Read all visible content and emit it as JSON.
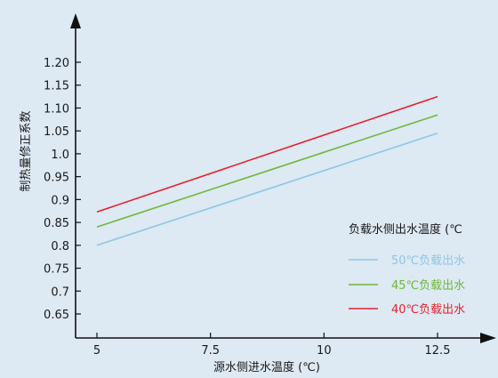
{
  "chart_data": {
    "type": "line",
    "title": "",
    "xlabel": "源水侧进水温度 (℃)",
    "ylabel": "制热量修正系数",
    "x_ticks": [
      "5",
      "7.5",
      "10",
      "12.5"
    ],
    "y_ticks": [
      "0.65",
      "0.7",
      "0.75",
      "0.8",
      "0.85",
      "0.9",
      "0.95",
      "1.0",
      "1.05",
      "1.10",
      "1.15",
      "1.20"
    ],
    "xlim": [
      5,
      12.5
    ],
    "ylim": [
      0.65,
      1.2
    ],
    "legend_title": "负载水侧出水温度 (℃",
    "legend_position": "right",
    "series": [
      {
        "name": "50℃负载出水",
        "color": "#8dc7e4",
        "x": [
          5,
          12.5
        ],
        "y": [
          0.8,
          1.045
        ]
      },
      {
        "name": "45℃负载出水",
        "color": "#6fb83a",
        "x": [
          5,
          12.5
        ],
        "y": [
          0.84,
          1.085
        ]
      },
      {
        "name": "40℃负载出水",
        "color": "#e3232e",
        "x": [
          5,
          12.5
        ],
        "y": [
          0.873,
          1.125
        ]
      }
    ]
  }
}
